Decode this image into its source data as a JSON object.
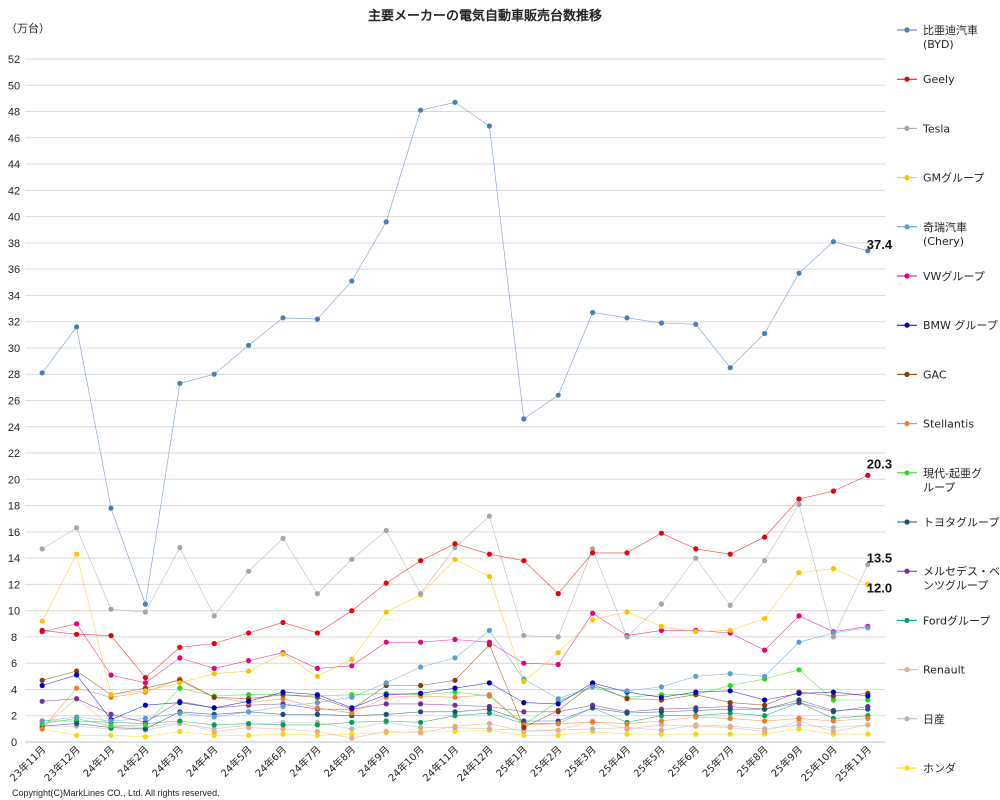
{
  "chart_data": {
    "type": "line",
    "title": "主要メーカーの電気自動車販売台数推移",
    "ylabel": "（万台）",
    "ylim": [
      0,
      52
    ],
    "yticks": [
      0,
      2,
      4,
      6,
      8,
      10,
      12,
      14,
      16,
      18,
      20,
      22,
      24,
      26,
      28,
      30,
      32,
      34,
      36,
      38,
      40,
      42,
      44,
      46,
      48,
      50,
      52
    ],
    "grid": true,
    "legend": "right",
    "categories": [
      "23年11月",
      "23年12月",
      "24年1月",
      "24年2月",
      "24年3月",
      "24年4月",
      "24年5月",
      "24年6月",
      "24年7月",
      "24年8月",
      "24年9月",
      "24年10月",
      "24年11月",
      "24年12月",
      "25年1月",
      "25年2月",
      "25年3月",
      "25年4月",
      "25年5月",
      "25年6月",
      "25年7月",
      "25年8月",
      "25年9月",
      "25年10月",
      "25年11月"
    ],
    "series": [
      {
        "name": "比亜迪汽車\n(BYD)",
        "color": "#4a7ebb",
        "values": [
          28.1,
          31.6,
          17.8,
          10.5,
          27.3,
          28.0,
          30.2,
          32.3,
          32.2,
          35.1,
          39.6,
          48.1,
          48.7,
          46.9,
          24.6,
          26.4,
          32.7,
          32.3,
          31.9,
          31.8,
          28.5,
          31.1,
          35.7,
          38.1,
          37.4
        ]
      },
      {
        "name": "Geely",
        "color": "#e8000b",
        "values": [
          8.5,
          8.2,
          8.1,
          4.9,
          7.2,
          7.5,
          8.3,
          9.1,
          8.3,
          10.0,
          12.1,
          13.8,
          15.1,
          14.3,
          13.8,
          11.3,
          14.4,
          14.4,
          15.9,
          14.7,
          14.3,
          15.6,
          18.5,
          19.1,
          20.3
        ]
      },
      {
        "name": "Tesla",
        "color": "#a5a5a5",
        "values": [
          14.7,
          16.3,
          10.1,
          9.9,
          14.8,
          9.6,
          13.0,
          15.5,
          11.3,
          13.9,
          16.1,
          11.3,
          14.8,
          17.2,
          8.1,
          8.0,
          14.7,
          8.0,
          10.5,
          14.0,
          10.4,
          13.8,
          18.1,
          8.0,
          13.5
        ]
      },
      {
        "name": "GMグループ",
        "color": "#ffc000",
        "values": [
          9.2,
          14.3,
          3.6,
          3.9,
          4.5,
          5.2,
          5.4,
          6.7,
          5.0,
          6.3,
          9.9,
          11.2,
          13.9,
          12.6,
          4.6,
          6.8,
          9.3,
          9.9,
          8.8,
          8.4,
          8.5,
          9.4,
          12.9,
          13.2,
          12.0
        ]
      },
      {
        "name": "奇瑞汽車\n(Chery)",
        "color": "#5b9bd5",
        "values": [
          1.6,
          1.9,
          1.6,
          1.8,
          2.2,
          1.9,
          2.3,
          2.7,
          3.0,
          3.4,
          4.5,
          5.7,
          6.4,
          8.5,
          4.8,
          3.3,
          4.2,
          3.9,
          4.2,
          5.0,
          5.2,
          5.0,
          7.6,
          8.3,
          8.7
        ]
      },
      {
        "name": "VWグループ",
        "color": "#e6007e",
        "values": [
          8.4,
          9.0,
          5.1,
          4.5,
          6.4,
          5.6,
          6.2,
          6.8,
          5.6,
          5.8,
          7.6,
          7.6,
          7.8,
          7.6,
          6.0,
          5.9,
          9.8,
          8.1,
          8.5,
          8.5,
          8.3,
          7.0,
          9.6,
          8.4,
          8.8
        ]
      },
      {
        "name": "BMW グループ",
        "color": "#0000c0",
        "values": [
          4.3,
          5.1,
          1.7,
          2.8,
          3.0,
          2.6,
          3.1,
          3.8,
          3.6,
          2.6,
          3.6,
          3.7,
          4.1,
          4.5,
          3.0,
          2.9,
          4.5,
          3.8,
          3.4,
          3.8,
          3.9,
          3.2,
          3.7,
          3.8,
          3.5
        ]
      },
      {
        "name": "GAC",
        "color": "#843c0c",
        "values": [
          4.7,
          5.4,
          3.6,
          4.1,
          4.7,
          3.4,
          3.3,
          3.6,
          3.4,
          2.5,
          4.3,
          4.3,
          4.7,
          7.4,
          1.1,
          2.4,
          4.4,
          3.3,
          3.2,
          3.6,
          3.0,
          2.8,
          3.8,
          3.5,
          3.7
        ]
      },
      {
        "name": "Stellantis",
        "color": "#ed7d31",
        "values": [
          1.0,
          4.1,
          3.4,
          3.8,
          4.8,
          3.4,
          3.0,
          3.3,
          2.6,
          2.2,
          3.4,
          3.5,
          3.4,
          3.6,
          1.3,
          1.4,
          1.5,
          1.4,
          1.6,
          1.9,
          1.8,
          1.6,
          1.8,
          1.6,
          1.8
        ]
      },
      {
        "name": "現代-起亜グ\nループ",
        "color": "#22dd22",
        "values": [
          1.4,
          1.8,
          1.2,
          1.3,
          4.1,
          3.5,
          3.6,
          3.6,
          3.5,
          3.6,
          3.7,
          3.6,
          3.8,
          3.5,
          1.3,
          3.1,
          4.2,
          3.4,
          3.6,
          3.6,
          4.3,
          4.8,
          5.5,
          3.2,
          3.2
        ]
      },
      {
        "name": "トヨタグループ",
        "color": "#1f4e79",
        "values": [
          1.2,
          1.4,
          1.1,
          1.0,
          2.3,
          2.1,
          2.3,
          2.1,
          2.1,
          2.0,
          2.1,
          2.3,
          2.3,
          2.5,
          1.6,
          1.6,
          2.6,
          2.2,
          2.3,
          2.4,
          2.5,
          2.5,
          3.2,
          2.4,
          2.5
        ]
      },
      {
        "name": "メルセデス・ベ\nンツグループ",
        "color": "#7030a0",
        "values": [
          3.1,
          3.3,
          2.1,
          1.5,
          3.1,
          2.6,
          2.8,
          2.9,
          2.5,
          2.5,
          2.9,
          2.9,
          2.8,
          2.7,
          2.3,
          2.3,
          2.8,
          2.3,
          2.5,
          2.6,
          2.7,
          2.5,
          3.0,
          2.3,
          2.7
        ]
      },
      {
        "name": "Fordグループ",
        "color": "#00a060",
        "values": [
          1.6,
          1.6,
          1.5,
          1.4,
          1.6,
          1.3,
          1.4,
          1.3,
          1.3,
          1.5,
          1.6,
          1.5,
          2.0,
          2.2,
          1.4,
          1.4,
          2.6,
          1.5,
          2.0,
          2.0,
          2.2,
          2.0,
          3.0,
          1.8,
          2.0
        ]
      },
      {
        "name": "Renault",
        "color": "#f4a582",
        "values": [
          1.1,
          3.3,
          1.2,
          1.1,
          1.5,
          0.8,
          1.1,
          1.0,
          0.8,
          0.3,
          0.8,
          0.7,
          1.2,
          1.4,
          0.8,
          0.9,
          1.6,
          1.0,
          1.3,
          1.2,
          1.1,
          0.8,
          1.6,
          0.8,
          1.3
        ]
      },
      {
        "name": "日産",
        "color": "#b4b4b4",
        "values": [
          1.2,
          1.2,
          1.0,
          0.9,
          1.4,
          1.0,
          1.3,
          1.5,
          1.5,
          1.0,
          1.5,
          1.1,
          1.1,
          1.0,
          0.9,
          0.9,
          1.0,
          1.1,
          0.9,
          1.3,
          1.2,
          1.0,
          1.3,
          1.1,
          1.3
        ]
      },
      {
        "name": "ホンダ",
        "color": "#ffd700",
        "values": [
          1.0,
          0.5,
          0.5,
          0.4,
          0.8,
          0.5,
          0.5,
          0.6,
          0.5,
          0.6,
          0.7,
          0.8,
          0.8,
          0.9,
          0.5,
          0.5,
          0.8,
          0.6,
          0.6,
          0.6,
          0.6,
          0.6,
          1.0,
          0.6,
          0.6
        ]
      }
    ],
    "annotations": [
      {
        "text": "37.4",
        "series": 0,
        "index": 24
      },
      {
        "text": "20.3",
        "series": 1,
        "index": 24
      },
      {
        "text": "13.5",
        "series": 2,
        "index": 24
      },
      {
        "text": "12.0",
        "series": 3,
        "index": 24
      }
    ]
  },
  "copyright": "Copyright(C)MarkLines CO., Ltd. All rights reserved."
}
